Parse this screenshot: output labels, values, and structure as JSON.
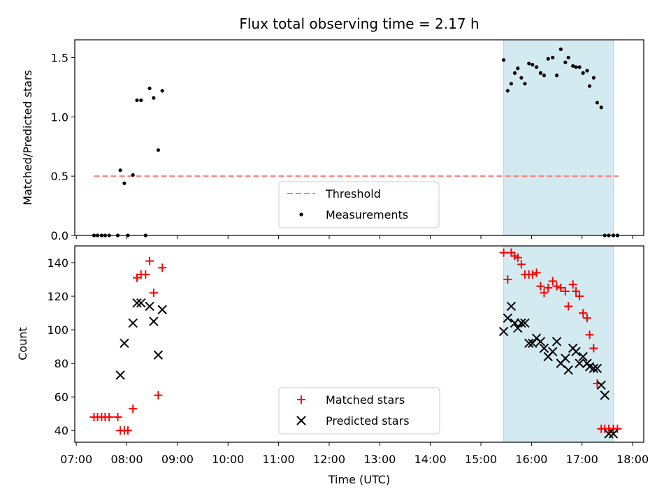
{
  "chart_data": {
    "title": "Flux total observing time = 2.17 h",
    "xlabel": "Time (UTC)",
    "x_tick_labels": [
      "07:00",
      "08:00",
      "09:00",
      "10:00",
      "11:00",
      "12:00",
      "13:00",
      "14:00",
      "15:00",
      "16:00",
      "17:00",
      "18:00"
    ],
    "x_ticks_hours": [
      7,
      8,
      9,
      10,
      11,
      12,
      13,
      14,
      15,
      16,
      17,
      18
    ],
    "xlim_hours": [
      6.97,
      18.22
    ],
    "shaded_span_hours": [
      15.45,
      17.62
    ],
    "colors": {
      "span": "#d3eaf1",
      "span_edge": "#add8e6",
      "threshold": "#ff7b7b",
      "measurement": "#000000",
      "matched": "#ff0000",
      "predicted": "#000000"
    },
    "panels": [
      {
        "type": "scatter",
        "ylabel": "Matched/Predicted stars",
        "ylim": [
          0,
          1.65
        ],
        "y_ticks": [
          0,
          0.5,
          1,
          1.5
        ],
        "y_tick_labels": [
          "0.0",
          "0.5",
          "1.0",
          "1.5"
        ],
        "legend_placement": "lower center",
        "threshold": {
          "name": "Threshold",
          "value": 0.5,
          "x_range_hours": [
            7.35,
            17.72
          ]
        },
        "series": [
          {
            "name": "Measurements",
            "x_hours": [
              7.35,
              7.42,
              7.5,
              7.57,
              7.65,
              7.82,
              7.87,
              7.95,
              8.02,
              8.12,
              8.2,
              8.28,
              8.37,
              8.45,
              8.53,
              8.62,
              8.7,
              15.45,
              15.53,
              15.6,
              15.67,
              15.73,
              15.8,
              15.87,
              15.95,
              16.02,
              16.1,
              16.18,
              16.25,
              16.33,
              16.42,
              16.5,
              16.58,
              16.67,
              16.73,
              16.82,
              16.88,
              16.95,
              17.02,
              17.1,
              17.15,
              17.23,
              17.3,
              17.38,
              17.45,
              17.53,
              17.62,
              17.7
            ],
            "y": [
              0,
              0,
              0,
              0,
              0,
              0,
              0.55,
              0.44,
              0,
              0.51,
              1.14,
              1.14,
              0,
              1.24,
              1.16,
              0.72,
              1.22,
              1.48,
              1.22,
              1.28,
              1.37,
              1.41,
              1.33,
              1.28,
              1.45,
              1.44,
              1.42,
              1.37,
              1.35,
              1.49,
              1.5,
              1.35,
              1.57,
              1.46,
              1.5,
              1.43,
              1.42,
              1.42,
              1.37,
              1.39,
              1.26,
              1.33,
              1.12,
              1.08,
              0,
              0,
              0,
              0
            ]
          }
        ]
      },
      {
        "type": "scatter",
        "ylabel": "Count",
        "ylim": [
          33,
          150
        ],
        "y_ticks": [
          40,
          60,
          80,
          100,
          120,
          140
        ],
        "y_tick_labels": [
          "40",
          "60",
          "80",
          "100",
          "120",
          "140"
        ],
        "legend_placement": "lower center",
        "series": [
          {
            "name": "Matched stars",
            "marker": "plus",
            "x_hours": [
              7.35,
              7.42,
              7.5,
              7.57,
              7.65,
              7.82,
              7.87,
              7.95,
              8.02,
              8.12,
              8.2,
              8.28,
              8.37,
              8.45,
              8.53,
              8.62,
              8.7,
              15.45,
              15.53,
              15.6,
              15.67,
              15.73,
              15.8,
              15.87,
              15.95,
              16.02,
              16.1,
              16.18,
              16.25,
              16.33,
              16.42,
              16.5,
              16.58,
              16.67,
              16.73,
              16.82,
              16.88,
              16.95,
              17.02,
              17.1,
              17.15,
              17.23,
              17.3,
              17.38,
              17.45,
              17.53,
              17.62,
              17.7
            ],
            "y": [
              48,
              48,
              48,
              48,
              48,
              48,
              40,
              40,
              40,
              53,
              131,
              133,
              133,
              141,
              122,
              61,
              137,
              146,
              130,
              146,
              144,
              143,
              139,
              133,
              133,
              133,
              134,
              126,
              122,
              125,
              129,
              126,
              125,
              123,
              114,
              127,
              123,
              120,
              110,
              107,
              97,
              89,
              68,
              41,
              41,
              41,
              41,
              41
            ]
          },
          {
            "name": "Predicted stars",
            "marker": "x",
            "x_hours": [
              7.87,
              7.95,
              8.12,
              8.2,
              8.28,
              8.45,
              8.53,
              8.62,
              8.7,
              15.45,
              15.53,
              15.6,
              15.67,
              15.73,
              15.8,
              15.87,
              15.95,
              16.02,
              16.1,
              16.18,
              16.25,
              16.33,
              16.42,
              16.5,
              16.58,
              16.67,
              16.73,
              16.82,
              16.88,
              16.95,
              17.02,
              17.1,
              17.15,
              17.23,
              17.3,
              17.38,
              17.45,
              17.53,
              17.62
            ],
            "y": [
              73,
              92,
              104,
              116,
              116,
              114,
              105,
              85,
              112,
              99,
              107,
              114,
              104,
              101,
              104,
              104,
              92,
              92,
              95,
              93,
              89,
              84,
              87,
              93,
              80,
              83,
              76,
              89,
              87,
              80,
              84,
              80,
              78,
              77,
              77,
              67,
              61,
              38,
              38
            ]
          }
        ]
      }
    ]
  }
}
